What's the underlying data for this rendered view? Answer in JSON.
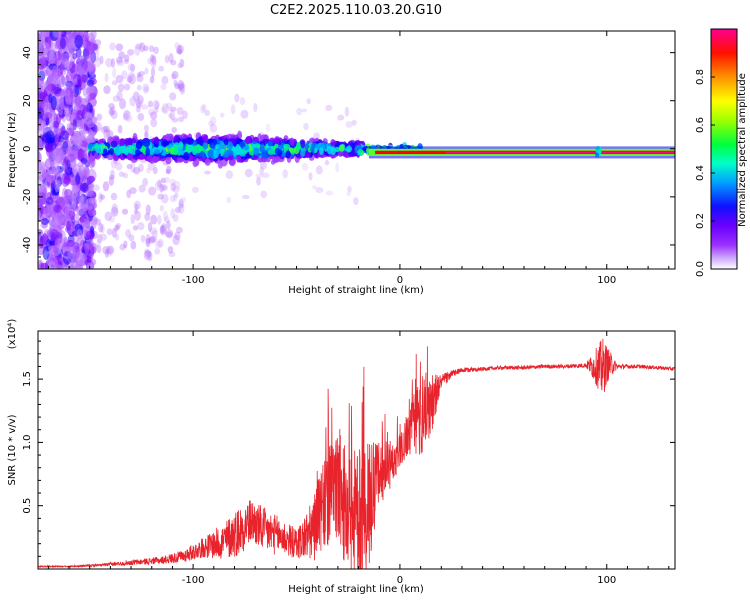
{
  "figure": {
    "title": "C2E2.2025.110.03.20.G10"
  },
  "chart_data": [
    {
      "type": "heatmap",
      "title": "C2E2.2025.110.03.20.G10",
      "xlabel": "Height of straight line (km)",
      "ylabel": "Frequency (Hz)",
      "xlim": [
        -175,
        133
      ],
      "ylim": [
        -50,
        49
      ],
      "xticks": [
        -100,
        0,
        100
      ],
      "yticks": [
        -40,
        -20,
        0,
        20,
        40
      ],
      "grid": false,
      "colorbar": {
        "label": "Normalized spectral amplitude",
        "range": [
          0,
          1
        ],
        "ticks": [
          "0.0",
          "0.2",
          "0.4",
          "0.6",
          "0.8"
        ],
        "colors": [
          "#ffffff",
          "#b46cff",
          "#7f00ff",
          "#0000ff",
          "#00d7ff",
          "#00ff60",
          "#b4ff00",
          "#ffff00",
          "#ff8000",
          "#ff0000",
          "#ff00a0"
        ]
      },
      "features": [
        {
          "region": "x -175 to -148",
          "freq_spread_hz": [
            -50,
            49
          ],
          "amplitude": 0.2,
          "desc_color": "#7f00ff"
        },
        {
          "region": "x -148 to -105",
          "freq_spread_hz": [
            -45,
            45
          ],
          "amplitude": 0.05,
          "desc_color": "#c8a0ff"
        },
        {
          "region": "x -148 to -20",
          "freq_center_hz": 0,
          "freq_width_hz": 10,
          "amplitude": 0.35
        },
        {
          "region": "x -15 to 133",
          "freq_center_hz": -1.5,
          "freq_width_hz": 1,
          "amplitude": 1.0
        },
        {
          "region": "x 96",
          "freq_spread_hz": [
            -5,
            3
          ],
          "amplitude": 0.3
        }
      ]
    },
    {
      "type": "line",
      "xlabel": "Height of straight line (km)",
      "ylabel": "SNR (10 * v/v)",
      "ylabel_scale": "(x10⁴)",
      "xlim": [
        -175,
        133
      ],
      "ylim": [
        0,
        1.88
      ],
      "xticks": [
        -100,
        0,
        100
      ],
      "yticks": [
        0.5,
        1.0,
        1.5
      ],
      "ytick_labels": [
        "0.5",
        "1.0",
        "1.5"
      ],
      "grid": false,
      "series": [
        {
          "color": "#e8232c",
          "x": [
            -175,
            -160,
            -145,
            -130,
            -115,
            -105,
            -95,
            -85,
            -78,
            -72,
            -65,
            -58,
            -50,
            -42,
            -35,
            -30,
            -25,
            -20,
            -15,
            -10,
            -5,
            0,
            5,
            10,
            15,
            20,
            25,
            30,
            40,
            50,
            60,
            70,
            80,
            90,
            95,
            98,
            100,
            105,
            115,
            125,
            133
          ],
          "y": [
            0.02,
            0.02,
            0.03,
            0.05,
            0.07,
            0.1,
            0.17,
            0.22,
            0.3,
            0.38,
            0.3,
            0.26,
            0.2,
            0.3,
            0.55,
            0.65,
            0.42,
            0.4,
            0.45,
            0.75,
            0.82,
            0.95,
            1.1,
            1.22,
            1.3,
            1.48,
            1.54,
            1.57,
            1.58,
            1.59,
            1.59,
            1.6,
            1.6,
            1.61,
            1.6,
            1.58,
            1.62,
            1.6,
            1.6,
            1.59,
            1.58
          ],
          "noise_amplitude": [
            0.005,
            0.005,
            0.01,
            0.02,
            0.03,
            0.05,
            0.08,
            0.15,
            0.2,
            0.18,
            0.18,
            0.15,
            0.12,
            0.25,
            0.4,
            0.45,
            0.5,
            0.55,
            0.55,
            0.25,
            0.2,
            0.15,
            0.2,
            0.35,
            0.25,
            0.06,
            0.03,
            0.02,
            0.015,
            0.015,
            0.015,
            0.015,
            0.015,
            0.02,
            0.15,
            0.25,
            0.15,
            0.02,
            0.015,
            0.015,
            0.015
          ]
        }
      ]
    }
  ]
}
